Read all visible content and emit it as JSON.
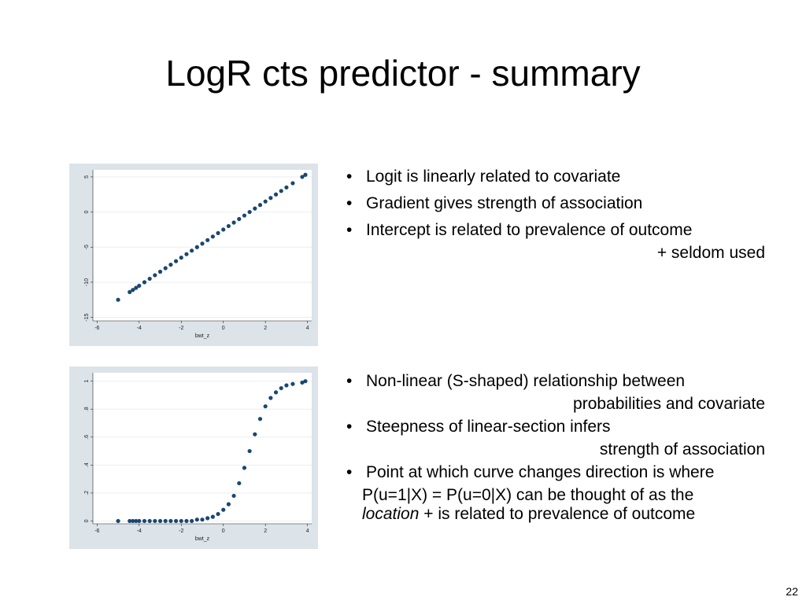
{
  "title": "LogR cts predictor - summary",
  "page_number": "22",
  "bullets_top": [
    {
      "text": "Logit is linearly related to covariate"
    },
    {
      "text": "Gradient gives strength of association"
    },
    {
      "text": "Intercept is related to prevalence of outcome",
      "continuation": "+ seldom used"
    }
  ],
  "bullets_bottom": [
    {
      "text": "Non-linear (S-shaped) relationship between",
      "continuation": "probabilities and covariate"
    },
    {
      "text": "Steepness of linear-section infers",
      "continuation": "strength of association"
    },
    {
      "text": "Point at which curve changes direction is where",
      "line2": "P(u=1|X) = P(u=0|X) can be thought of as the",
      "line3_italic": "location",
      "line3_rest": "+ is related to prevalence of outcome"
    }
  ],
  "chart_data": [
    {
      "type": "scatter",
      "x_label": "bwt_z",
      "color": "#1a476f",
      "grid": true,
      "x": [
        -5,
        -4.45,
        -4.3,
        -4.15,
        -4,
        -3.75,
        -3.5,
        -3.25,
        -3,
        -2.75,
        -2.5,
        -2.25,
        -2,
        -1.75,
        -1.5,
        -1.25,
        -1,
        -0.75,
        -0.5,
        -0.25,
        0,
        0.25,
        0.5,
        0.75,
        1,
        1.25,
        1.5,
        1.75,
        2,
        2.25,
        2.5,
        2.75,
        3,
        3.3,
        3.75,
        3.9
      ],
      "values": [
        -12.5,
        -11.4,
        -11.1,
        -10.8,
        -10.5,
        -10,
        -9.5,
        -9,
        -8.5,
        -8,
        -7.5,
        -7,
        -6.5,
        -6,
        -5.5,
        -5,
        -4.5,
        -4,
        -3.5,
        -3,
        -2.5,
        -2,
        -1.5,
        -1,
        -0.5,
        0,
        0.5,
        1,
        1.5,
        2,
        2.5,
        3,
        3.5,
        4.1,
        5,
        5.3
      ],
      "xlim": [
        -6.2,
        4.2
      ],
      "xticks": [
        -6,
        -4,
        -2,
        0,
        2,
        4
      ],
      "ylim": [
        -15.5,
        6
      ],
      "yticks": [
        -15,
        -10,
        -5,
        0,
        5
      ]
    },
    {
      "type": "scatter",
      "x_label": "bwt_z",
      "color": "#1a476f",
      "grid": true,
      "x": [
        -5,
        -4.45,
        -4.3,
        -4.15,
        -4,
        -3.75,
        -3.5,
        -3.25,
        -3,
        -2.75,
        -2.5,
        -2.25,
        -2,
        -1.75,
        -1.5,
        -1.25,
        -1,
        -0.75,
        -0.5,
        -0.25,
        0,
        0.25,
        0.5,
        0.75,
        1,
        1.25,
        1.5,
        1.75,
        2,
        2.25,
        2.5,
        2.75,
        3,
        3.3,
        3.75,
        3.9
      ],
      "values": [
        0,
        0,
        0,
        0,
        0,
        0,
        0,
        0,
        0,
        0,
        0,
        0,
        0,
        0,
        0,
        0.01,
        0.01,
        0.02,
        0.03,
        0.05,
        0.08,
        0.12,
        0.18,
        0.27,
        0.38,
        0.5,
        0.62,
        0.73,
        0.82,
        0.88,
        0.92,
        0.95,
        0.97,
        0.98,
        0.99,
        1
      ],
      "xlim": [
        -6.2,
        4.2
      ],
      "xticks": [
        -6,
        -4,
        -2,
        0,
        2,
        4
      ],
      "ylim": [
        -0.02,
        1.06
      ],
      "yticks": [
        0,
        {
          "value": 0.2,
          "label": ".2"
        },
        {
          "value": 0.4,
          "label": ".4"
        },
        {
          "value": 0.6,
          "label": ".6"
        },
        {
          "value": 0.8,
          "label": ".8"
        },
        1
      ]
    }
  ]
}
